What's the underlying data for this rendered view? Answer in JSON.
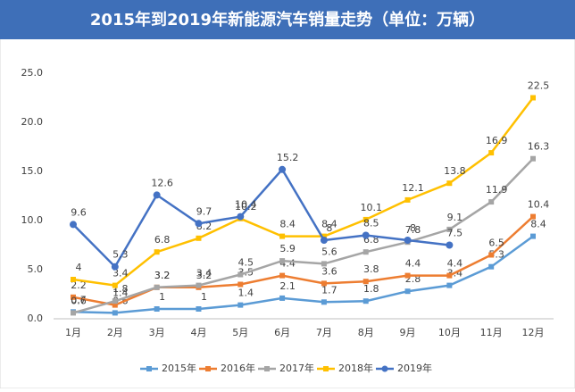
{
  "chart_data": {
    "type": "line",
    "title": "2015年到2019年新能源汽车销量走势（单位：万辆）",
    "categories": [
      "1月",
      "2月",
      "3月",
      "4月",
      "5月",
      "6月",
      "7月",
      "8月",
      "9月",
      "10月",
      "11月",
      "12月"
    ],
    "series": [
      {
        "name": "2015年",
        "color": "#5b9bd5",
        "values": [
          0.7,
          0.6,
          1.0,
          1.0,
          1.4,
          2.1,
          1.7,
          1.8,
          2.8,
          3.4,
          5.3,
          8.4
        ]
      },
      {
        "name": "2016年",
        "color": "#ed7d31",
        "values": [
          2.2,
          1.4,
          3.2,
          3.2,
          3.5,
          4.4,
          3.6,
          3.8,
          4.4,
          4.4,
          6.5,
          10.4
        ]
      },
      {
        "name": "2017年",
        "color": "#a5a5a5",
        "values": [
          0.6,
          1.8,
          3.2,
          3.4,
          4.5,
          5.9,
          5.6,
          6.8,
          7.8,
          9.1,
          11.9,
          16.3
        ]
      },
      {
        "name": "2018年",
        "color": "#ffc000",
        "values": [
          4,
          3.4,
          6.8,
          8.2,
          10.2,
          8.4,
          8.4,
          10.1,
          12.1,
          13.8,
          16.9,
          22.5
        ]
      },
      {
        "name": "2019年",
        "color": "#4472c4",
        "values": [
          9.6,
          5.3,
          12.6,
          9.7,
          10.4,
          15.2,
          8,
          8.5,
          8.0,
          7.5,
          null,
          null
        ]
      }
    ],
    "ylim": [
      0,
      25
    ],
    "yticks": [
      {
        "value": 0,
        "label": "0.0"
      },
      {
        "value": 5,
        "label": "5.0"
      },
      {
        "value": 10,
        "label": "10.0"
      },
      {
        "value": 15,
        "label": "15.0"
      },
      {
        "value": 20,
        "label": "20.0"
      },
      {
        "value": 25,
        "label": "25.0"
      }
    ],
    "grid": false,
    "legend": "bottom"
  }
}
